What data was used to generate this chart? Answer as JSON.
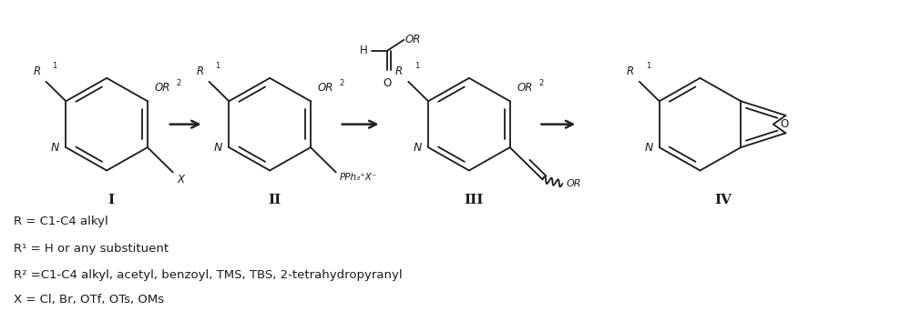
{
  "background_color": "#ffffff",
  "fig_width": 10.0,
  "fig_height": 3.42,
  "dpi": 100,
  "legend_lines": [
    "R = C1-C4 alkyl",
    "R¹ = H or any substituent",
    "R² =C1-C4 alkyl, acetyl, benzoyl, TMS, TBS, 2-tetrahydropyranyl",
    "X = Cl, Br, OTf, OTs, OMs"
  ],
  "compound_labels": [
    "I",
    "II",
    "III",
    "IV"
  ],
  "text_color": "#1a1a1a"
}
